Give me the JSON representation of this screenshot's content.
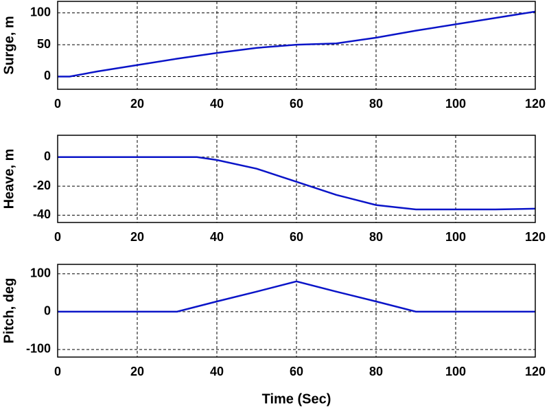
{
  "chart_data": [
    {
      "type": "line",
      "y_label": "Surge, m",
      "x": [
        0,
        3,
        10,
        20,
        30,
        40,
        50,
        60,
        70,
        80,
        90,
        100,
        110,
        120
      ],
      "series": [
        {
          "color": "#0a14c8",
          "values": [
            0,
            0,
            8,
            18,
            28,
            37,
            45,
            50,
            52,
            61,
            72,
            82,
            92,
            102
          ]
        }
      ],
      "xlim": [
        0,
        120
      ],
      "xticks": [
        0,
        20,
        40,
        60,
        80,
        100,
        120
      ],
      "ylim": [
        -20,
        118
      ],
      "yticks": [
        0,
        50,
        100
      ],
      "grid": true
    },
    {
      "type": "line",
      "y_label": "Heave, m",
      "x": [
        0,
        35,
        40,
        50,
        60,
        70,
        80,
        90,
        100,
        110,
        120
      ],
      "series": [
        {
          "color": "#0a14c8",
          "values": [
            0,
            0,
            -2,
            -8,
            -17,
            -26,
            -33,
            -36,
            -36,
            -36,
            -35.5
          ]
        }
      ],
      "xlim": [
        0,
        120
      ],
      "xticks": [
        0,
        20,
        40,
        60,
        80,
        100,
        120
      ],
      "ylim": [
        -45,
        15
      ],
      "yticks": [
        0,
        -20,
        -40
      ],
      "grid": true
    },
    {
      "type": "line",
      "y_label": "Pitch, deg",
      "x_label": "Time (Sec)",
      "x": [
        0,
        30,
        40,
        50,
        60,
        70,
        80,
        90,
        120
      ],
      "series": [
        {
          "color": "#0a14c8",
          "values": [
            0,
            0,
            27,
            53,
            80,
            53,
            27,
            0,
            0
          ]
        }
      ],
      "xlim": [
        0,
        120
      ],
      "xticks": [
        0,
        20,
        40,
        60,
        80,
        100,
        120
      ],
      "ylim": [
        -120,
        125
      ],
      "yticks": [
        100,
        0,
        -100
      ],
      "grid": true
    }
  ]
}
